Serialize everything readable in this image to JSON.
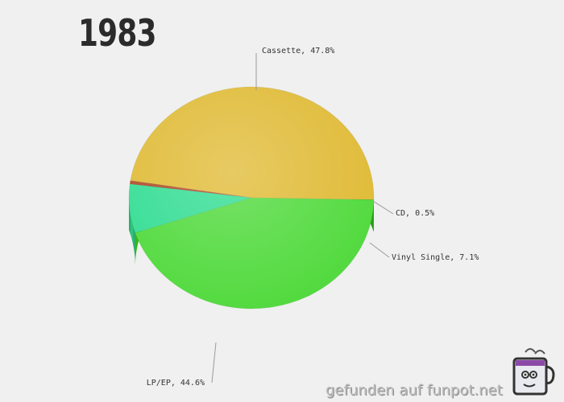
{
  "chart_data": {
    "type": "pie",
    "title": "1983",
    "slices": [
      {
        "label": "Cassette",
        "value": 47.8,
        "display": "Cassette, 47.8%",
        "color": "#e0bb37",
        "side_color": "#b8961f"
      },
      {
        "label": "CD",
        "value": 0.5,
        "display": "CD, 0.5%",
        "color": "#b04a2a",
        "side_color": "#8e3818"
      },
      {
        "label": "Vinyl Single",
        "value": 7.1,
        "display": "Vinyl Single, 7.1%",
        "color": "#34dd94",
        "side_color": "#1fbd6f"
      },
      {
        "label": "LP/EP",
        "value": 44.6,
        "display": "LP/EP, 44.6%",
        "color": "#52da3e",
        "side_color": "#33c21c"
      }
    ],
    "legend": "none",
    "style": "3d"
  },
  "watermark": {
    "text": "gefunden auf funpot.net",
    "icon": "mug-mascot-icon"
  }
}
